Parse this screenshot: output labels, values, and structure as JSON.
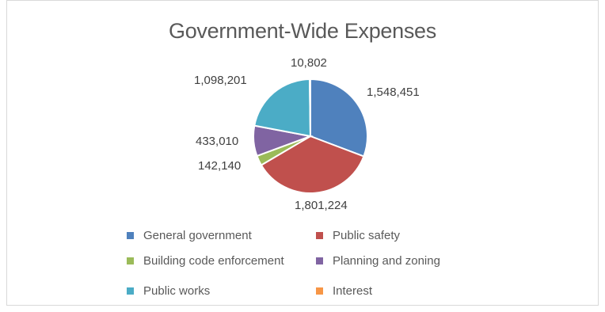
{
  "chart_data": {
    "type": "pie",
    "title": "Government-Wide Expenses",
    "categories": [
      "General government",
      "Public safety",
      "Building code enforcement",
      "Planning and zoning",
      "Public works",
      "Interest"
    ],
    "values": [
      1548451,
      1801224,
      142140,
      433010,
      1098201,
      10802
    ],
    "data_labels": [
      "1,548,451",
      "1,801,224",
      "142,140",
      "433,010",
      "1,098,201",
      "10,802"
    ],
    "colors": [
      "#4f81bd",
      "#c0504d",
      "#9bbb59",
      "#8064a2",
      "#4bacc6",
      "#f79646"
    ],
    "legend_position": "bottom",
    "start_angle_deg": 0,
    "direction": "clockwise"
  }
}
